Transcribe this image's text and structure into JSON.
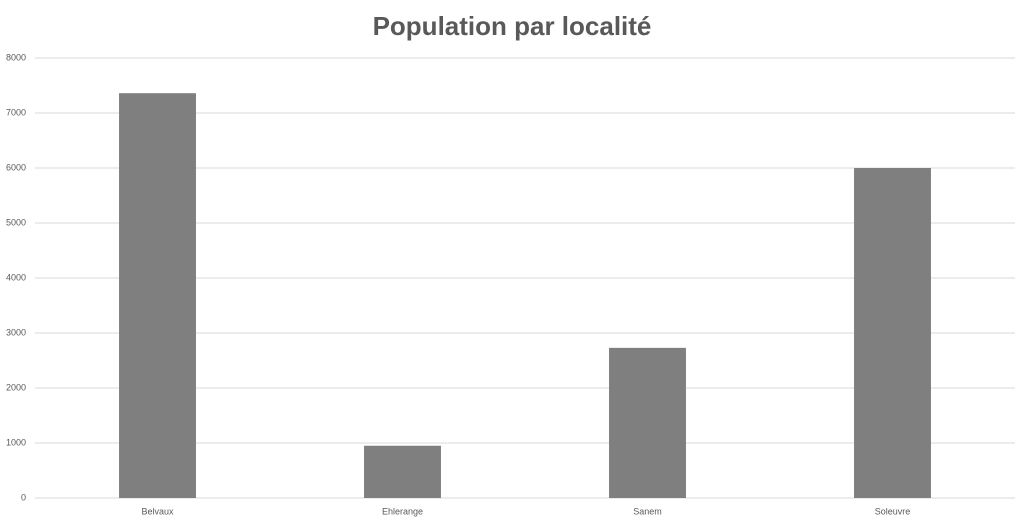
{
  "chart_data": {
    "type": "bar",
    "title": "Population par localité",
    "categories": [
      "Belvaux",
      "Ehlerange",
      "Sanem",
      "Soleuvre"
    ],
    "values": [
      7360,
      950,
      2730,
      6000
    ],
    "color": "#7f7f7f",
    "ylim": [
      0,
      8000
    ],
    "yticks": [
      0,
      1000,
      2000,
      3000,
      4000,
      5000,
      6000,
      7000,
      8000
    ],
    "grid": true
  }
}
